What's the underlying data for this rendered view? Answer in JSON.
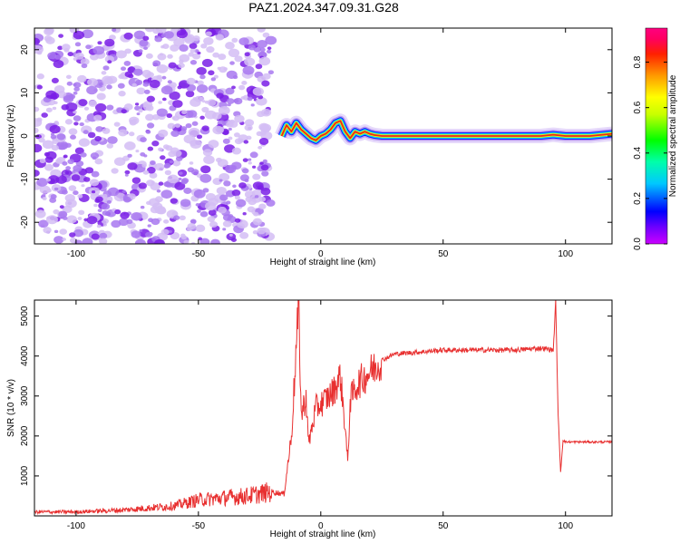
{
  "figure_title": "PAZ1.2024.347.09.31.G28",
  "colors": {
    "snr_line": "#e83030",
    "ridge": "#e8281e",
    "noise_dark": "#7a1ee6",
    "noise_light": "#d4bdf5"
  },
  "chart_data": [
    {
      "type": "heatmap",
      "title": "PAZ1.2024.347.09.31.G28",
      "xlabel": "Height of straight line (km)",
      "ylabel": "Frequency (Hz)",
      "xlim": [
        -117,
        119
      ],
      "ylim": [
        -25,
        25
      ],
      "x_ticks": [
        -100,
        -50,
        0,
        50,
        100
      ],
      "y_ticks": [
        -20,
        -10,
        0,
        10,
        20
      ],
      "grid": false,
      "ridge": {
        "x": [
          -16,
          -14,
          -12,
          -10,
          -8,
          -6,
          -4,
          -2,
          0,
          2,
          4,
          6,
          8,
          10,
          12,
          14,
          16,
          18,
          20,
          22,
          25,
          40,
          60,
          80,
          90,
          95,
          100,
          110,
          119
        ],
        "frequency": [
          0,
          2.5,
          1,
          3,
          1.5,
          0.5,
          -0.5,
          -1,
          0,
          0.5,
          1.5,
          3,
          3.5,
          1,
          -0.5,
          1,
          0.5,
          1,
          0.5,
          0.2,
          0,
          0,
          0,
          0,
          0,
          0.3,
          0,
          0,
          0.5
        ]
      },
      "noise_region_x": [
        -117,
        -20
      ],
      "colorbar": {
        "label": "Normalized spectral amplitude",
        "range": [
          0,
          0.95
        ],
        "ticks": [
          0.0,
          0.2,
          0.4,
          0.6,
          0.8
        ],
        "tick_labels": [
          "0.0",
          "0.2",
          "0.4",
          "0.6",
          "0.8"
        ],
        "colormap": "hsv-rainbow"
      }
    },
    {
      "type": "line",
      "xlabel": "Height of straight line (km)",
      "ylabel": "SNR (10 * v/v)",
      "xlim": [
        -117,
        119
      ],
      "ylim": [
        0,
        5400
      ],
      "x_ticks": [
        -100,
        -50,
        0,
        50,
        100
      ],
      "y_ticks": [
        1000,
        2000,
        3000,
        4000,
        5000
      ],
      "grid": false,
      "series": [
        {
          "x": [
            -117,
            -100,
            -80,
            -70,
            -60,
            -50,
            -40,
            -30,
            -20,
            -15,
            -12,
            -9,
            -8,
            -6,
            -5,
            -2,
            0,
            5,
            8,
            10,
            11,
            12,
            15,
            20,
            25,
            30,
            40,
            50,
            60,
            70,
            80,
            90,
            95,
            96,
            97,
            98,
            99,
            100,
            110,
            119
          ],
          "y": [
            100,
            100,
            150,
            200,
            250,
            400,
            450,
            500,
            600,
            550,
            2000,
            5300,
            2500,
            3000,
            1800,
            2700,
            2800,
            3100,
            3500,
            2200,
            1300,
            2900,
            3300,
            3600,
            3900,
            4050,
            4100,
            4150,
            4150,
            4150,
            4150,
            4200,
            4150,
            5350,
            2500,
            1100,
            1900,
            1850,
            1850,
            1850
          ]
        }
      ]
    }
  ]
}
